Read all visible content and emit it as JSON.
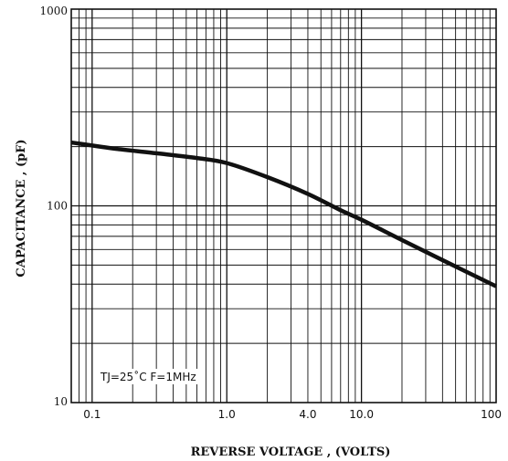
{
  "chart_data": {
    "type": "line",
    "title": "",
    "xlabel": "REVERSE VOLTAGE , (VOLTS)",
    "ylabel": "CAPACITANCE , (pF)",
    "x_scale": "log",
    "y_scale": "log",
    "xlim": [
      0.07,
      100
    ],
    "ylim": [
      10,
      1000
    ],
    "grid": true,
    "x_ticks": [
      0.1,
      1.0,
      4.0,
      10.0,
      100
    ],
    "x_tick_labels": [
      "0.1",
      "1.0",
      "4.0",
      "10.0",
      "100"
    ],
    "y_ticks": [
      10,
      100,
      1000
    ],
    "y_tick_labels": [
      "10",
      "100",
      "1000"
    ],
    "annotation": "TJ=25˚C   F=1MHz",
    "series": [
      {
        "x": [
          0.07,
          0.15,
          0.3,
          0.6,
          1.0,
          2.0,
          4.0,
          7.0,
          10.0,
          20.0,
          40.0,
          100
        ],
        "y": [
          210,
          195,
          185,
          175,
          165,
          140,
          115,
          95,
          85,
          67,
          53,
          39
        ]
      }
    ]
  }
}
